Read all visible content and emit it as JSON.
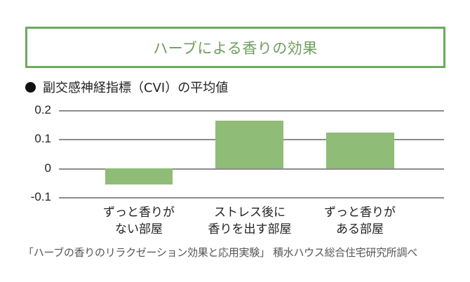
{
  "title": "ハーブによる香りの効果",
  "subtitle": "副交感神経指標（CVI）の平均値",
  "source": "「ハーブの香りのリラクゼーション効果と応用実験」 積水ハウス総合住宅研究所調べ",
  "colors": {
    "title_border": "#6aaa5c",
    "title_text": "#6e9e5a",
    "bar": "#8fbc76",
    "grid": "#8c8c8c"
  },
  "chart_data": {
    "type": "bar",
    "title": "副交感神経指標（CVI）の平均値",
    "categories": [
      "ずっと香りがない部屋",
      "ストレス後に香りを出す部屋",
      "ずっと香りがある部屋"
    ],
    "category_lines": [
      [
        "ずっと香りが",
        "ない部屋"
      ],
      [
        "ストレス後に",
        "香りを出す部屋"
      ],
      [
        "ずっと香りが",
        "ある部屋"
      ]
    ],
    "values": [
      -0.055,
      0.164,
      0.123
    ],
    "xlabel": "",
    "ylabel": "",
    "ylim": [
      -0.1,
      0.2
    ],
    "yticks": [
      "0.2",
      "0.1",
      "0",
      "-0.1"
    ],
    "grid": true,
    "legend": null
  }
}
